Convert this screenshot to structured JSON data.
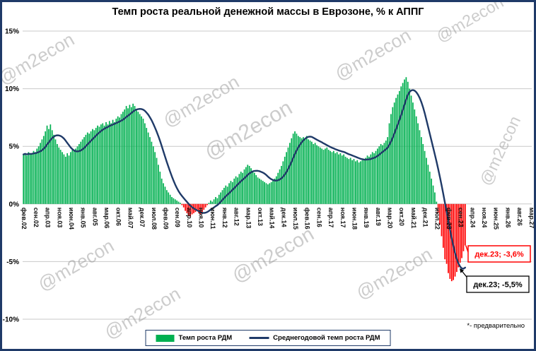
{
  "title": "Темп роста реальной денежной массы в Еврозоне, % к АППГ",
  "footnote": "*- предварительно",
  "watermark": {
    "text": "@m2econ",
    "color": "#8f8f8f"
  },
  "legend": {
    "bar_label": "Темп роста РДМ",
    "line_label": "Среднегодовой темп роста РДМ"
  },
  "frame": {
    "border_color": "#1f3a68",
    "background": "#ffffff"
  },
  "chart_data": {
    "type": "bar",
    "title": "Темп роста реальной денежной массы в Еврозоне, % к АППГ",
    "xlabel": "",
    "ylabel": "% к АППГ",
    "ylim": [
      -10,
      15
    ],
    "grid": "horizontal",
    "legend_position": "bottom",
    "yticks": [
      {
        "value": 15,
        "label": "15%"
      },
      {
        "value": 10,
        "label": "10%"
      },
      {
        "value": 5,
        "label": "5%"
      },
      {
        "value": 0,
        "label": "0%"
      },
      {
        "value": -5,
        "label": "-5%"
      },
      {
        "value": -10,
        "label": "-10%"
      }
    ],
    "x_first_month": "фев.02",
    "x_last_axis_month": "мар.27",
    "total_slots": 302,
    "tick_every_months": 7,
    "x_tick_labels": [
      "фев.02",
      "сен.02",
      "апр.03",
      "ноя.03",
      "июн.04",
      "янв.05",
      "авг.05",
      "мар.06",
      "окт.06",
      "май.07",
      "дек.07",
      "июл.08",
      "фев.09",
      "сен.09",
      "апр.10",
      "ноя.10",
      "июн.11",
      "янв.12",
      "авг.12",
      "мар.13",
      "окт.13",
      "май.14",
      "дек.14",
      "июл.15",
      "фев.16",
      "сен.16",
      "апр.17",
      "ноя.17",
      "июн.18",
      "янв.19",
      "авг.19",
      "мар.20",
      "окт.20",
      "май.21",
      "дек.21",
      "июл.22",
      "фев.23",
      "сен.23",
      "апр.24",
      "ноя.24",
      "июн.25",
      "янв.26",
      "авг.26",
      "мар.27"
    ],
    "series": [
      {
        "name": "Темп роста РДМ",
        "type": "bar",
        "color_positive": "#00b050",
        "color_negative": "#ff0000",
        "start": "фев.02",
        "end": "дек.23",
        "monthly_values_pct": [
          4.3,
          4.4,
          4.2,
          4.5,
          4.3,
          4.4,
          4.6,
          4.5,
          4.8,
          5.0,
          5.3,
          5.6,
          5.9,
          6.3,
          6.8,
          6.5,
          6.9,
          6.4,
          6.0,
          5.6,
          5.2,
          4.9,
          4.7,
          4.5,
          4.3,
          4.1,
          4.4,
          4.2,
          4.5,
          4.7,
          4.6,
          4.8,
          5.0,
          5.2,
          5.4,
          5.6,
          5.8,
          6.0,
          6.2,
          6.1,
          6.3,
          6.5,
          6.4,
          6.6,
          6.8,
          6.7,
          6.9,
          7.0,
          6.8,
          7.1,
          6.9,
          7.2,
          7.0,
          7.3,
          7.1,
          7.4,
          7.6,
          7.5,
          7.8,
          8.0,
          8.2,
          8.5,
          8.3,
          8.6,
          8.4,
          8.7,
          8.5,
          8.2,
          8.0,
          7.8,
          7.6,
          7.4,
          7.0,
          6.6,
          6.2,
          5.8,
          5.4,
          5.0,
          4.5,
          4.0,
          3.4,
          2.8,
          2.2,
          1.8,
          1.5,
          1.2,
          1.0,
          0.8,
          0.6,
          0.5,
          0.4,
          0.3,
          0.2,
          0.1,
          -0.1,
          -0.3,
          -0.6,
          -0.8,
          -1.0,
          -1.1,
          -0.9,
          -0.8,
          -0.7,
          -0.6,
          -0.8,
          -0.9,
          -0.7,
          -0.5,
          -0.3,
          -0.1,
          0.1,
          0.3,
          0.2,
          0.4,
          0.6,
          0.5,
          0.8,
          1.0,
          1.2,
          1.4,
          1.6,
          1.5,
          1.8,
          2.0,
          1.9,
          2.2,
          2.4,
          2.3,
          2.6,
          2.8,
          2.7,
          3.0,
          3.2,
          3.4,
          3.3,
          3.1,
          2.9,
          2.7,
          2.5,
          2.3,
          2.2,
          2.1,
          2.0,
          1.9,
          1.8,
          1.7,
          1.8,
          1.9,
          2.0,
          2.2,
          2.4,
          2.7,
          3.0,
          3.3,
          3.7,
          4.1,
          4.5,
          4.9,
          5.3,
          5.7,
          6.1,
          6.3,
          6.1,
          5.9,
          5.8,
          5.7,
          5.8,
          5.7,
          5.9,
          5.6,
          5.5,
          5.4,
          5.2,
          5.3,
          5.1,
          5.0,
          4.9,
          4.8,
          4.7,
          4.8,
          4.9,
          4.7,
          4.6,
          4.5,
          4.6,
          4.4,
          4.5,
          4.3,
          4.4,
          4.2,
          4.3,
          4.1,
          4.0,
          3.9,
          4.0,
          3.8,
          3.9,
          3.7,
          3.8,
          3.6,
          3.7,
          3.8,
          3.9,
          4.0,
          4.2,
          4.1,
          4.3,
          4.5,
          4.4,
          4.6,
          4.8,
          5.0,
          5.2,
          5.1,
          5.3,
          5.5,
          5.8,
          7.0,
          7.8,
          8.4,
          8.8,
          9.2,
          9.5,
          9.8,
          10.2,
          10.5,
          10.8,
          11.0,
          10.6,
          10.0,
          9.4,
          8.8,
          8.2,
          7.6,
          7.0,
          6.4,
          5.8,
          5.2,
          4.6,
          4.0,
          3.4,
          2.8,
          2.2,
          1.6,
          1.0,
          0.2,
          -0.8,
          -1.8,
          -2.8,
          -3.8,
          -4.8,
          -5.2,
          -6.0,
          -6.5,
          -6.7,
          -6.6,
          -6.3,
          -5.9,
          -5.5,
          -5.1,
          -4.7,
          -4.1,
          -3.6
        ]
      },
      {
        "name": "Среднегодовой темп роста РДМ",
        "type": "line",
        "color": "#1f3a68",
        "definition": "12-месячное скользящее среднее темпа роста РДМ",
        "last_value_pct": -5.5
      }
    ],
    "annotations": [
      {
        "text": "дек.23; -3,6%",
        "color": "#ff0000",
        "target": "last_bar",
        "value_pct": -3.6
      },
      {
        "text": "дек.23; -5,5%",
        "color": "#000000",
        "target": "line_end",
        "value_pct": -5.5
      }
    ],
    "footnote": "*- предварительно"
  }
}
